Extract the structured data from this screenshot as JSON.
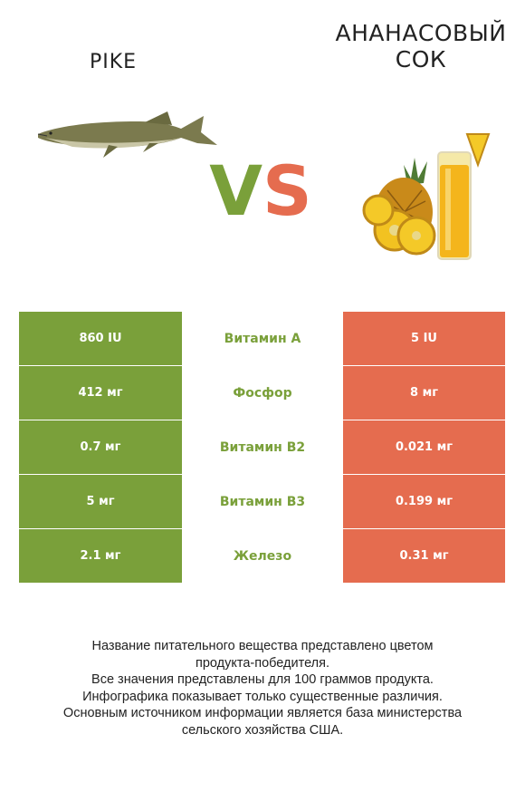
{
  "left_product": {
    "name": "Pike"
  },
  "right_product": {
    "name": "Ананасовый сок"
  },
  "vs": {
    "v": "V",
    "s": "S"
  },
  "rows": [
    {
      "left": "860 IU",
      "nutrient": "Витамин A",
      "right": "5 IU"
    },
    {
      "left": "412 мг",
      "nutrient": "Фосфор",
      "right": "8 мг"
    },
    {
      "left": "0.7 мг",
      "nutrient": "Витамин B2",
      "right": "0.021 мг"
    },
    {
      "left": "5 мг",
      "nutrient": "Витамин B3",
      "right": "0.199 мг"
    },
    {
      "left": "2.1 мг",
      "nutrient": "Железо",
      "right": "0.31 мг"
    }
  ],
  "footer": {
    "line1": "Название питательного вещества представлено цветом",
    "line2": "продукта-победителя.",
    "line3": "Все значения представлены для 100 граммов продукта.",
    "line4": "Инфографика показывает только существенные различия.",
    "line5": "Основным источником информации является база министерства",
    "line6": "сельского хозяйства США."
  },
  "colors": {
    "left_accent": "#7aa03a",
    "right_accent": "#e56c4f"
  }
}
